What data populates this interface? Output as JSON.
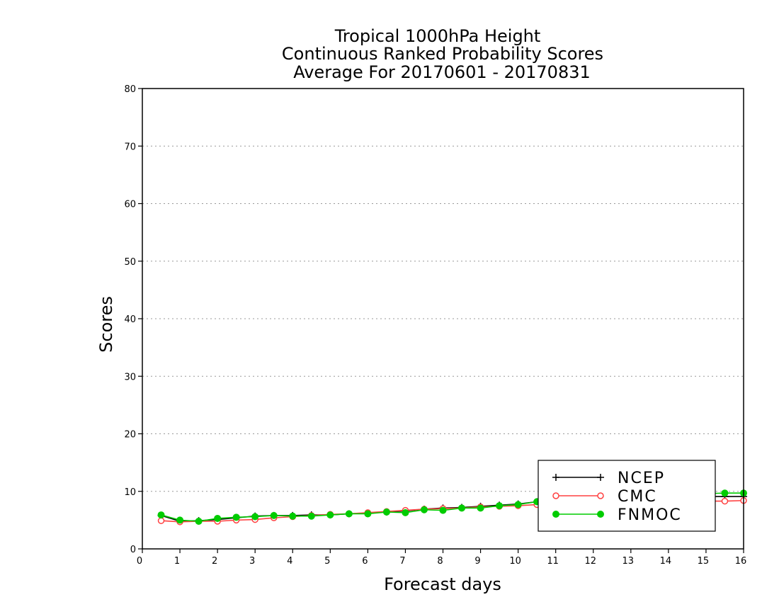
{
  "chart_data": {
    "type": "line",
    "title": [
      "Tropical 1000hPa Height",
      "Continuous Ranked Probability Scores",
      "Average For 20170601 - 20170831"
    ],
    "xlabel": "Forecast days",
    "ylabel": "Scores",
    "xlim": [
      0,
      16
    ],
    "ylim": [
      0,
      80
    ],
    "xticks": [
      "0",
      "1",
      "2",
      "3",
      "4",
      "5",
      "6",
      "7",
      "8",
      "9",
      "10",
      "11",
      "12",
      "13",
      "14",
      "15",
      "16"
    ],
    "yticks": [
      "0",
      "10",
      "20",
      "30",
      "40",
      "50",
      "60",
      "70",
      "80"
    ],
    "ygrid": true,
    "legend_position": "bottom-right",
    "x": [
      0.5,
      1,
      1.5,
      2,
      2.5,
      3,
      3.5,
      4,
      4.5,
      5,
      5.5,
      6,
      6.5,
      7,
      7.5,
      8,
      8.5,
      9,
      9.5,
      10,
      10.5,
      11,
      11.5,
      12,
      12.5,
      13,
      13.5,
      14,
      14.5,
      15,
      15.5,
      16
    ],
    "series": [
      {
        "name": "NCEP",
        "color": "#000000",
        "marker": "plus",
        "values": [
          5.8,
          4.8,
          4.9,
          5.1,
          5.4,
          5.7,
          5.8,
          5.8,
          5.9,
          5.9,
          6.1,
          6.2,
          6.4,
          6.6,
          6.9,
          7.1,
          7.2,
          7.4,
          7.6,
          7.8,
          8.2,
          8.5,
          8.6,
          8.7,
          8.8,
          8.9,
          9.0,
          9.0,
          9.1,
          9.1,
          9.1,
          9.1
        ]
      },
      {
        "name": "CMC",
        "color": "#ff4040",
        "marker": "open-circle",
        "values": [
          4.9,
          4.7,
          4.8,
          4.8,
          5.0,
          5.1,
          5.4,
          5.6,
          5.8,
          6.0,
          6.1,
          6.3,
          6.5,
          6.7,
          6.9,
          7.0,
          7.1,
          7.3,
          7.4,
          7.5,
          7.7,
          7.8,
          7.9,
          8.0,
          8.1,
          8.1,
          8.2,
          8.2,
          8.3,
          8.3,
          8.3,
          8.4
        ]
      },
      {
        "name": "FNMOC",
        "color": "#00cc00",
        "marker": "filled-circle",
        "values": [
          5.9,
          5.0,
          4.8,
          5.3,
          5.5,
          5.6,
          5.8,
          5.7,
          5.7,
          5.9,
          6.1,
          6.1,
          6.4,
          6.3,
          6.8,
          6.7,
          7.1,
          7.1,
          7.5,
          7.7,
          8.2,
          8.5,
          8.7,
          8.8,
          9.0,
          9.1,
          9.3,
          9.4,
          9.5,
          9.6,
          9.7,
          9.7
        ]
      }
    ]
  }
}
